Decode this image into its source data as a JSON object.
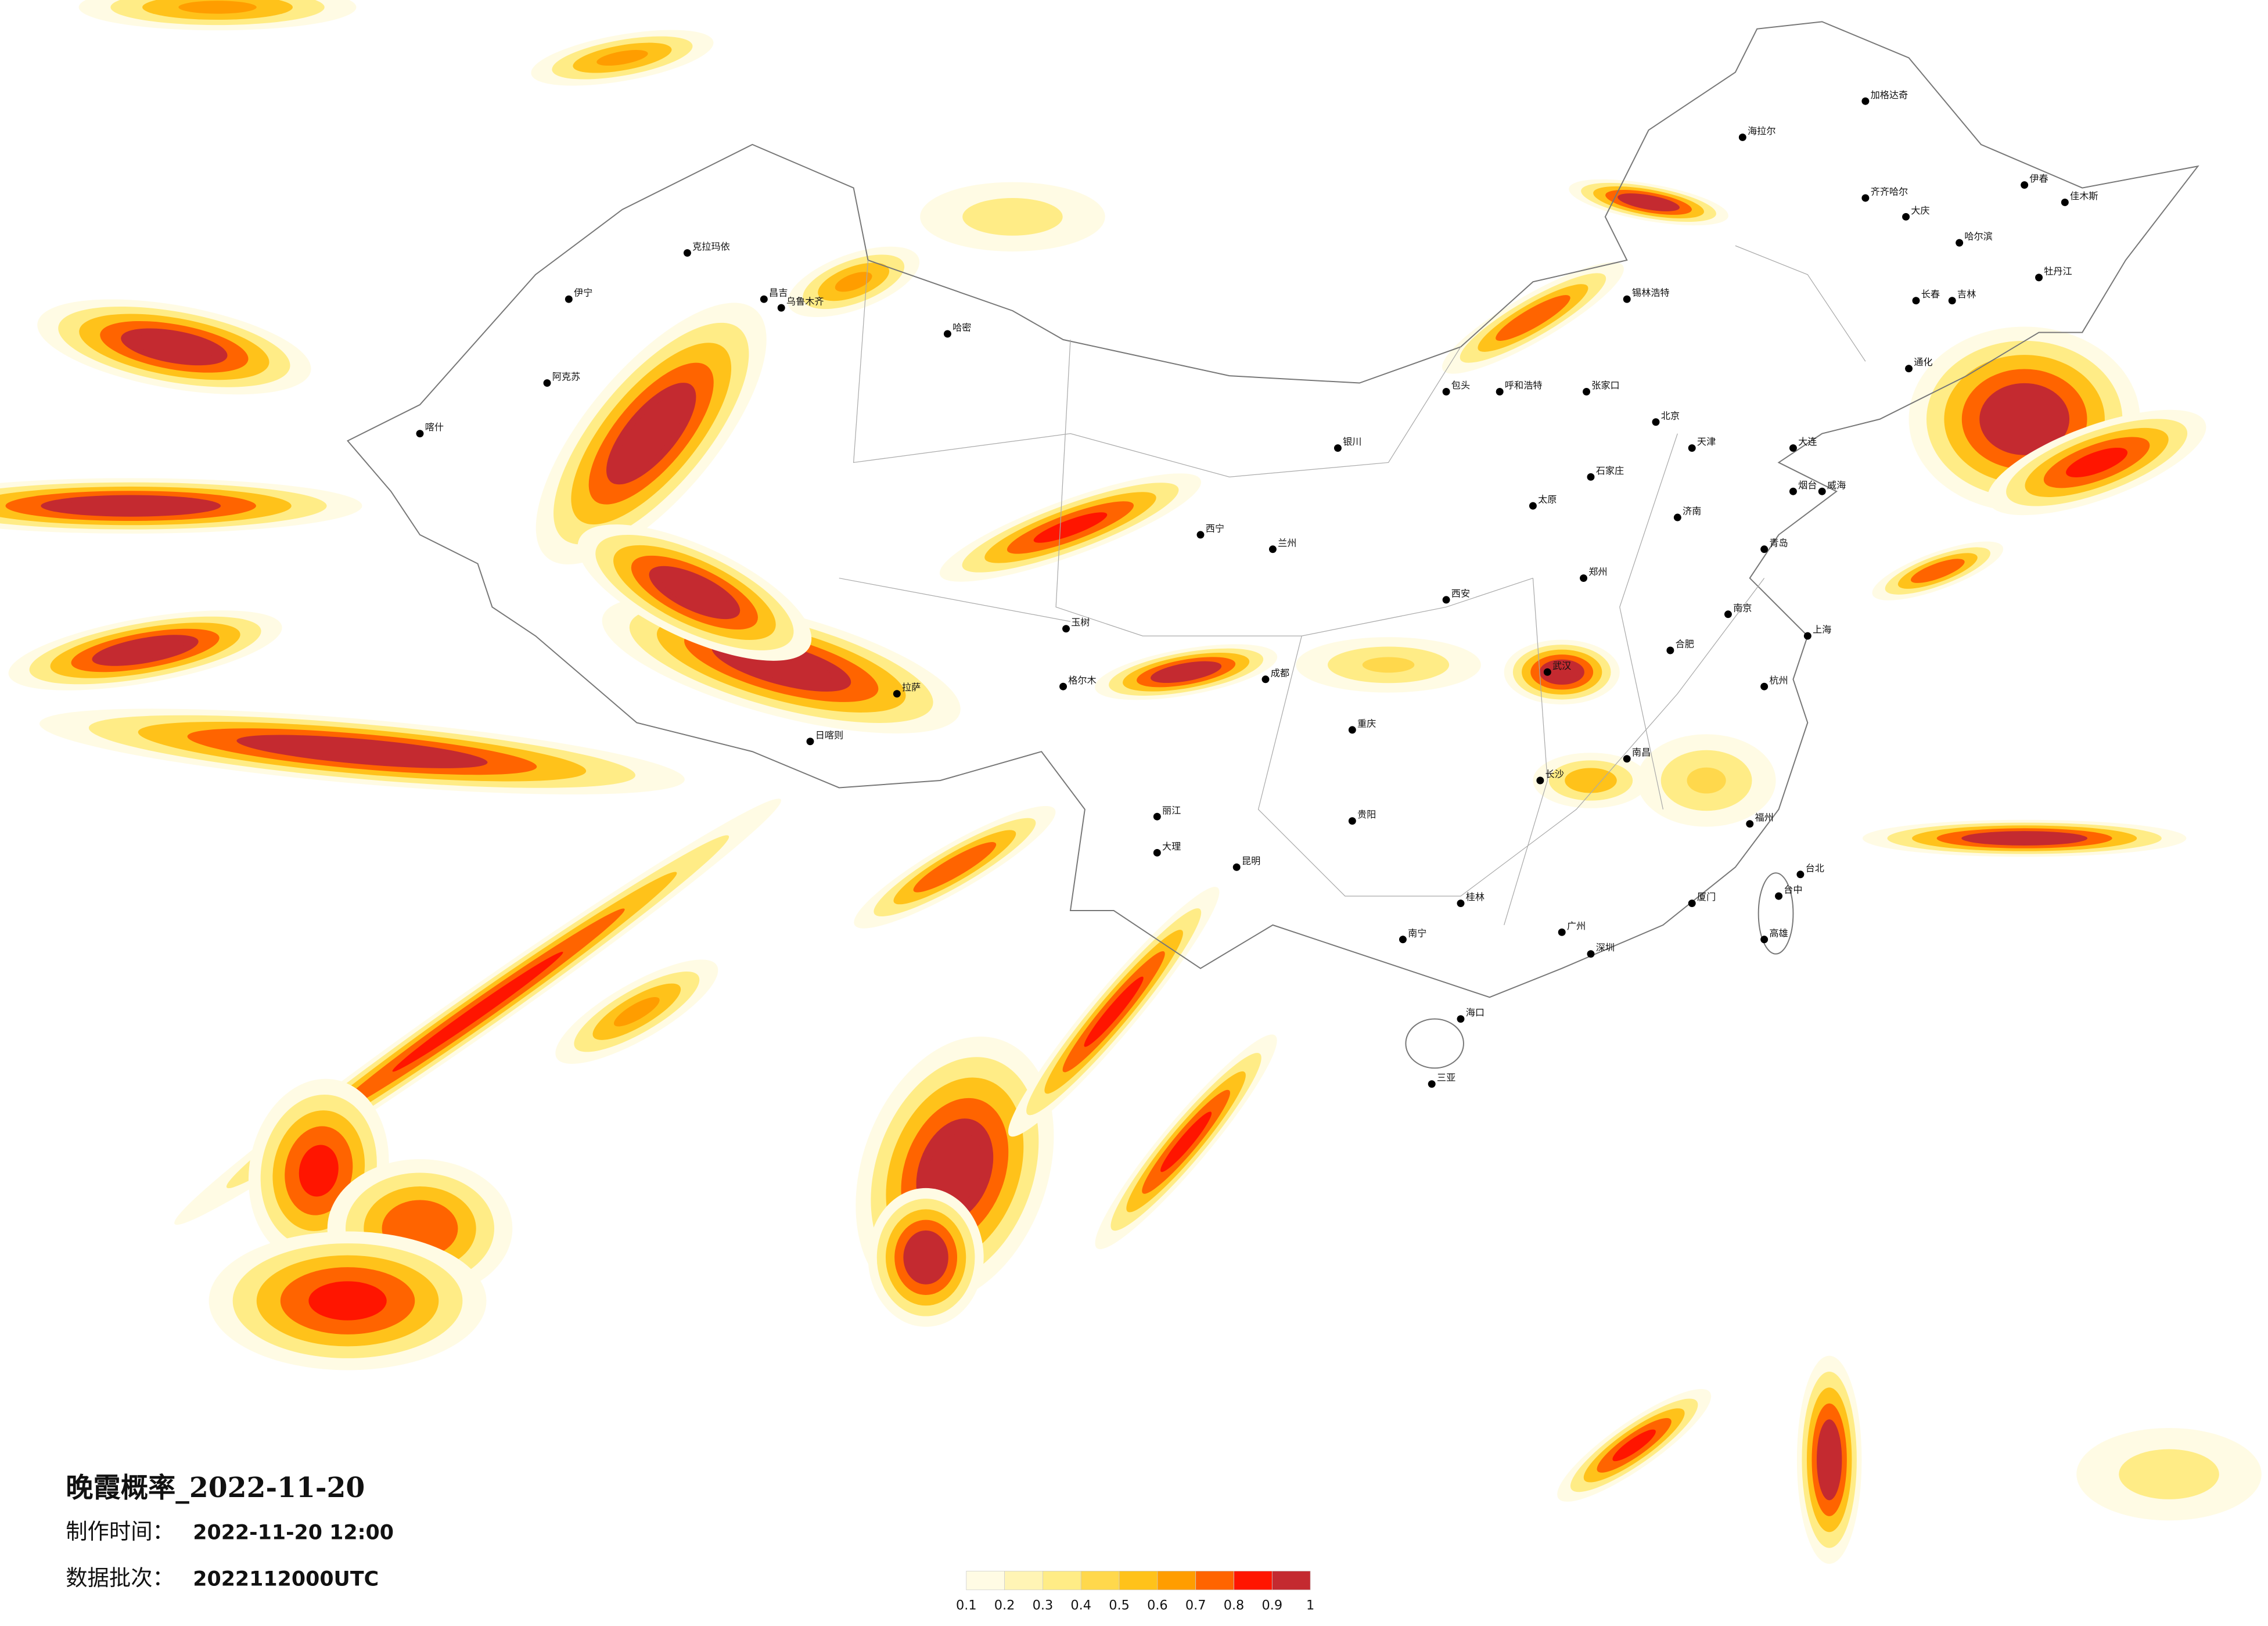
{
  "title": "晚霞概率_2022-11-20",
  "info": [
    {
      "label": "制作时间：",
      "value": "2022-11-20 12:00"
    },
    {
      "label": "数据批次：",
      "value": "2022112000UTC"
    }
  ],
  "legend": {
    "ticks": [
      0.1,
      0.2,
      0.3,
      0.4,
      0.5,
      0.6,
      0.7,
      0.8,
      0.9,
      1
    ],
    "colors": [
      "#fffbe4",
      "#fff4b5",
      "#ffec86",
      "#ffd84c",
      "#ffc21a",
      "#ff9d00",
      "#ff6400",
      "#ff1500",
      "#c42a30"
    ]
  },
  "cities": [
    "克拉玛依",
    "伊宁",
    "昌吉",
    "乌鲁木齐",
    "哈密",
    "阿克苏",
    "喀什",
    "海拉尔",
    "加格达奇",
    "齐齐哈尔",
    "大庆",
    "哈尔滨",
    "伊春",
    "佳木斯",
    "牡丹江",
    "长春",
    "吉林",
    "通化",
    "锡林浩特",
    "呼和浩特",
    "包头",
    "张家口",
    "北京",
    "天津",
    "石家庄",
    "太原",
    "济南",
    "青岛",
    "郑州",
    "西安",
    "兰州",
    "西宁",
    "银川",
    "拉萨",
    "日喀则",
    "格尔木",
    "玉树",
    "成都",
    "重庆",
    "武汉",
    "长沙",
    "南昌",
    "合肥",
    "南京",
    "上海",
    "杭州",
    "福州",
    "厦门",
    "台北",
    "台中",
    "高雄",
    "广州",
    "深圳",
    "南宁",
    "海口",
    "三亚",
    "昆明",
    "贵阳",
    "大理",
    "丽江",
    "桂林",
    "烟台",
    "威海",
    "大连"
  ]
}
